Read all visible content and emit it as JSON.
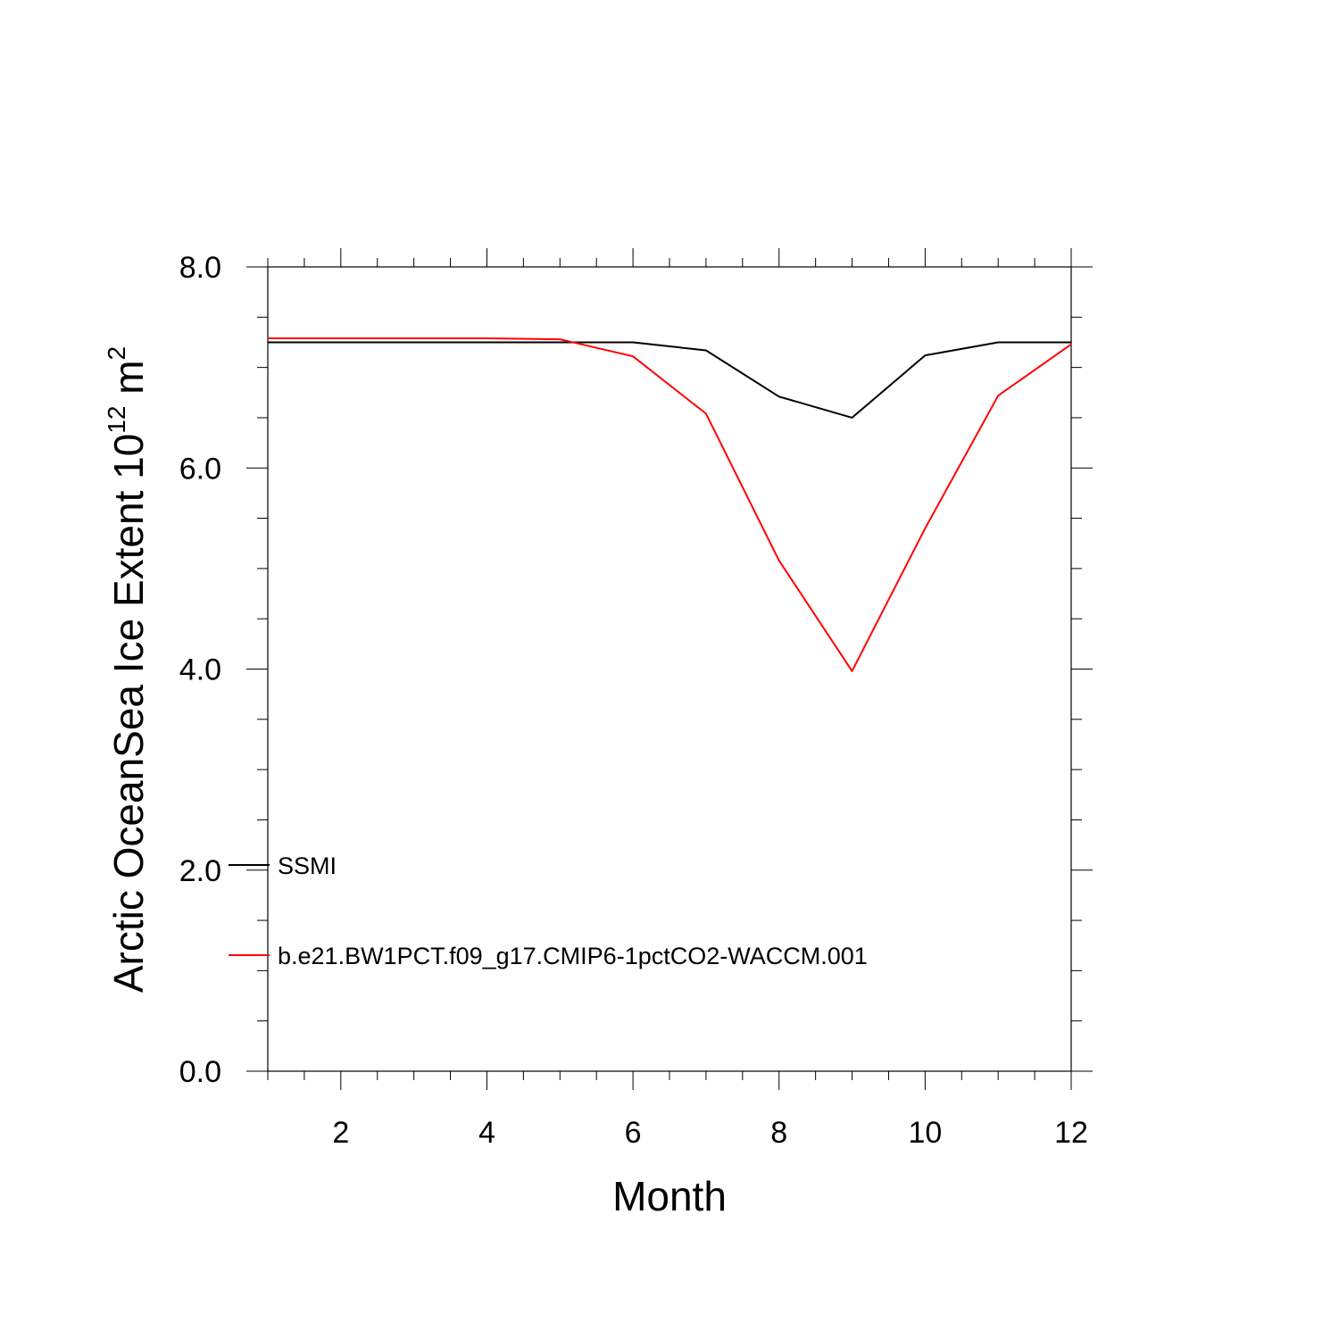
{
  "chart_data": {
    "type": "line",
    "title": "",
    "xlabel": "Month",
    "ylabel": {
      "prefix": "Arctic OceanSea Ice Extent 10",
      "exponent": "12",
      "unit": " m",
      "unit_exponent": "2"
    },
    "xlim": [
      1,
      12
    ],
    "ylim": [
      0,
      8
    ],
    "x_ticks": [
      2,
      4,
      6,
      8,
      10,
      12
    ],
    "x_tick_labels": [
      "2",
      "4",
      "6",
      "8",
      "10",
      "12"
    ],
    "y_ticks": [
      0,
      2,
      4,
      6,
      8
    ],
    "y_tick_labels": [
      "0.0",
      "2.0",
      "4.0",
      "6.0",
      "8.0"
    ],
    "grid": false,
    "legend_position": "lower-left inside",
    "x": [
      1,
      2,
      3,
      4,
      5,
      6,
      7,
      8,
      9,
      10,
      11,
      12
    ],
    "series": [
      {
        "name": "SSMI",
        "color": "#000000",
        "values": [
          7.25,
          7.25,
          7.25,
          7.25,
          7.25,
          7.25,
          7.17,
          6.71,
          6.5,
          7.12,
          7.25,
          7.25
        ]
      },
      {
        "name": "b.e21.BW1PCT.f09_g17.CMIP6-1pctCO2-WACCM.001",
        "color": "#ff0000",
        "values": [
          7.29,
          7.29,
          7.29,
          7.29,
          7.28,
          7.11,
          6.54,
          5.08,
          3.98,
          5.4,
          6.72,
          7.23
        ]
      }
    ]
  }
}
